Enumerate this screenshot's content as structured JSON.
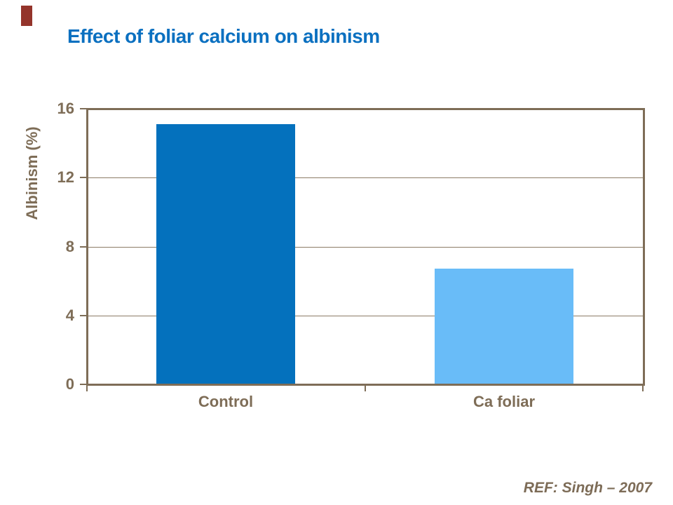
{
  "slide": {
    "title": "Effect of foliar calcium on albinism",
    "title_color": "#0b70c0",
    "accent_color": "#94342b",
    "ref_text": "REF: Singh – 2007",
    "ref_color": "#7d6c57"
  },
  "chart_data": {
    "type": "bar",
    "title": "",
    "categories": [
      "Control",
      "Ca foliar"
    ],
    "values": [
      15.1,
      6.7
    ],
    "bar_colors": [
      "#0471bd",
      "#69bcf8"
    ],
    "xlabel": "",
    "ylabel": "Albinism (%)",
    "ylim": [
      0,
      16
    ],
    "yticks": [
      0,
      4,
      8,
      12,
      16
    ],
    "grid": true,
    "legend": "none",
    "axis_color": "#7e6d57",
    "grid_color": "#8c7c66",
    "label_color": "#7e6d57"
  }
}
